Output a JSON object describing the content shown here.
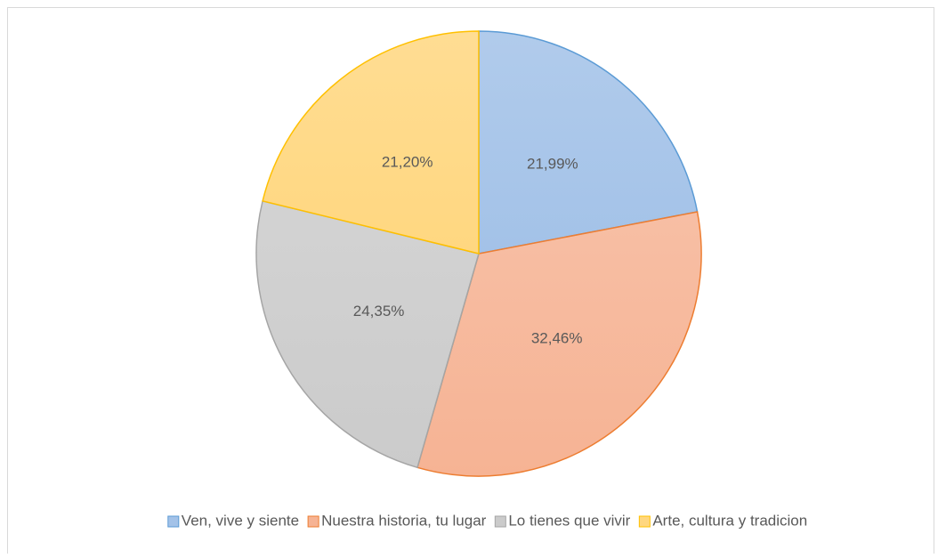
{
  "chart_data": {
    "type": "pie",
    "categories": [
      "Ven, vive y siente",
      "Nuestra historia, tu lugar",
      "Lo tienes que vivir",
      "Arte, cultura y tradicion"
    ],
    "values": [
      21.99,
      32.46,
      24.35,
      21.2
    ],
    "value_labels": [
      "21,99%",
      "32,46%",
      "24,35%",
      "21,20%"
    ],
    "colors": [
      "#a3c2e8",
      "#f6b394",
      "#cbcbcb",
      "#ffd780"
    ],
    "edge_colors": [
      "#5b9bd5",
      "#ed7d31",
      "#a5a5a5",
      "#ffc000"
    ],
    "legend": "bottom"
  }
}
